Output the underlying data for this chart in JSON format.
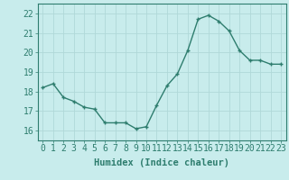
{
  "x": [
    0,
    1,
    2,
    3,
    4,
    5,
    6,
    7,
    8,
    9,
    10,
    11,
    12,
    13,
    14,
    15,
    16,
    17,
    18,
    19,
    20,
    21,
    22,
    23
  ],
  "y": [
    18.2,
    18.4,
    17.7,
    17.5,
    17.2,
    17.1,
    16.4,
    16.4,
    16.4,
    16.1,
    16.2,
    17.3,
    18.3,
    18.9,
    20.1,
    21.7,
    21.9,
    21.6,
    21.1,
    20.1,
    19.6,
    19.6,
    19.4,
    19.4
  ],
  "line_color": "#2e7d6e",
  "marker": "+",
  "marker_size": 3,
  "background_color": "#c8ecec",
  "grid_color": "#b0d8d8",
  "xlabel": "Humidex (Indice chaleur)",
  "ylabel_ticks": [
    16,
    17,
    18,
    19,
    20,
    21,
    22
  ],
  "xlim": [
    -0.5,
    23.5
  ],
  "ylim": [
    15.5,
    22.5
  ],
  "xlabel_fontsize": 7.5,
  "tick_fontsize": 7,
  "linewidth": 1.0
}
